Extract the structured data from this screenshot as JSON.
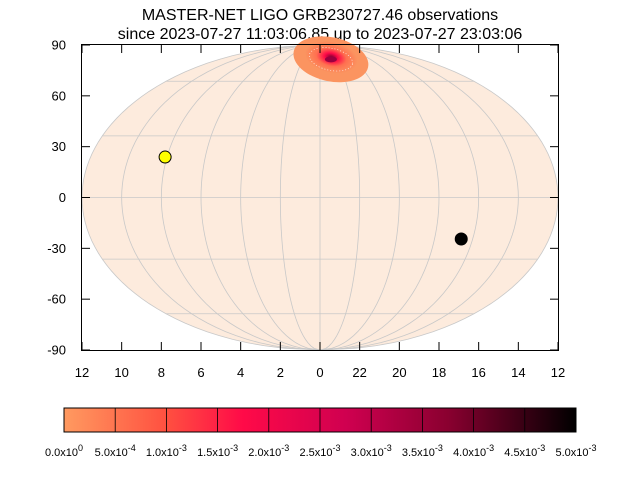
{
  "chart_data": {
    "type": "scatter",
    "title_line1": "MASTER-NET LIGO GRB230727.46 observations",
    "title_line2": "since 2023-07-27 11:03:06.85 up to 2023-07-27 23:03:06",
    "projection": "mollweide",
    "ylim": [
      -90,
      90
    ],
    "y_ticks": [
      "90",
      "60",
      "30",
      "0",
      "-30",
      "-60",
      "-90"
    ],
    "x_ticks": [
      "12",
      "10",
      "8",
      "6",
      "4",
      "2",
      "0",
      "22",
      "20",
      "18",
      "16",
      "14",
      "12"
    ],
    "grid": true,
    "sky_color": "#fdebdd",
    "grid_color": "#c8c8c8",
    "probability_region": {
      "center_ra_h": 22.7,
      "center_dec": 75,
      "outer_color": "#fb9460",
      "peak_color": "#9a0040"
    },
    "markers": [
      {
        "name": "sun",
        "ra_h": 8.1,
        "dec": 19.5,
        "color": "#ffff00",
        "edge": "#000000"
      },
      {
        "name": "moon",
        "ra_h": 16.6,
        "dec": -20,
        "color": "#000000",
        "edge": "#000000"
      }
    ],
    "colorbar": {
      "min": 0.0,
      "max": 0.005,
      "colors": [
        "#ff9a60",
        "#ff5040",
        "#ff0a48",
        "#d00050",
        "#8a0030",
        "#000000"
      ],
      "tick_labels": [
        "0.0x10",
        "5.0x10",
        "1.0x10",
        "1.5x10",
        "2.0x10",
        "2.5x10",
        "3.0x10",
        "3.5x10",
        "4.0x10",
        "4.5x10",
        "5.0x10"
      ],
      "tick_exponents": [
        "0",
        "-4",
        "-3",
        "-3",
        "-3",
        "-3",
        "-3",
        "-3",
        "-3",
        "-3",
        "-3"
      ]
    }
  }
}
